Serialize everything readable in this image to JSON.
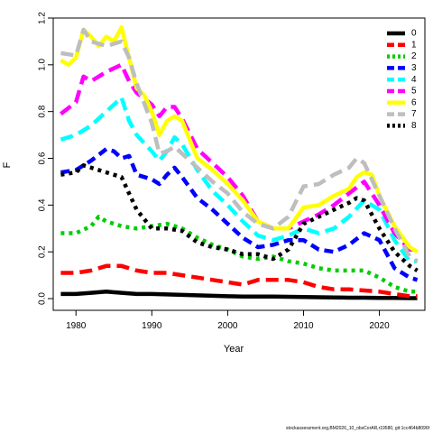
{
  "chart_data": {
    "type": "line",
    "xlabel": "Year",
    "ylabel": "F",
    "xlim": [
      1977,
      2026
    ],
    "ylim": [
      -0.05,
      1.2
    ],
    "x_ticks": [
      1980,
      1990,
      2000,
      2010,
      2020
    ],
    "y_ticks": [
      0.0,
      0.2,
      0.4,
      0.6,
      0.8,
      1.0,
      1.2
    ],
    "y_tick_labels": [
      "0.0",
      "0.2",
      "0.4",
      "0.6",
      "0.8",
      "1.0",
      "1.2"
    ],
    "legend_position": "top-right",
    "grid": false,
    "series": [
      {
        "name": "0",
        "color": "#000000",
        "dash": "solid",
        "x": [
          1978,
          1980,
          1982,
          1984,
          1986,
          1988,
          1990,
          1992,
          1994,
          1996,
          1998,
          2000,
          2002,
          2004,
          2006,
          2008,
          2010,
          2012,
          2014,
          2016,
          2018,
          2020,
          2022,
          2024,
          2025
        ],
        "y": [
          0.02,
          0.02,
          0.025,
          0.03,
          0.025,
          0.02,
          0.02,
          0.018,
          0.016,
          0.014,
          0.012,
          0.01,
          0.009,
          0.009,
          0.009,
          0.008,
          0.007,
          0.006,
          0.005,
          0.004,
          0.004,
          0.003,
          0.003,
          0.002,
          0.002
        ]
      },
      {
        "name": "1",
        "color": "#ff0000",
        "dash": "long",
        "x": [
          1978,
          1980,
          1982,
          1984,
          1986,
          1988,
          1990,
          1992,
          1994,
          1996,
          1998,
          2000,
          2002,
          2004,
          2006,
          2008,
          2010,
          2012,
          2014,
          2016,
          2018,
          2020,
          2022,
          2024,
          2025
        ],
        "y": [
          0.11,
          0.11,
          0.12,
          0.14,
          0.14,
          0.12,
          0.11,
          0.11,
          0.1,
          0.09,
          0.08,
          0.07,
          0.06,
          0.08,
          0.08,
          0.08,
          0.07,
          0.05,
          0.04,
          0.04,
          0.035,
          0.03,
          0.02,
          0.01,
          0.01
        ]
      },
      {
        "name": "2",
        "color": "#00cd00",
        "dash": "dot",
        "x": [
          1978,
          1980,
          1982,
          1983,
          1984,
          1986,
          1988,
          1990,
          1992,
          1994,
          1996,
          1998,
          2000,
          2002,
          2004,
          2006,
          2008,
          2010,
          2012,
          2014,
          2016,
          2018,
          2020,
          2022,
          2024,
          2025
        ],
        "y": [
          0.28,
          0.28,
          0.31,
          0.35,
          0.33,
          0.31,
          0.3,
          0.31,
          0.32,
          0.3,
          0.26,
          0.23,
          0.21,
          0.18,
          0.17,
          0.18,
          0.16,
          0.15,
          0.13,
          0.12,
          0.12,
          0.12,
          0.09,
          0.05,
          0.03,
          0.03
        ]
      },
      {
        "name": "3",
        "color": "#0000ff",
        "dash": "medium",
        "x": [
          1978,
          1980,
          1982,
          1984,
          1985,
          1986,
          1987,
          1988,
          1990,
          1991,
          1992,
          1993,
          1994,
          1996,
          1998,
          2000,
          2002,
          2004,
          2006,
          2008,
          2010,
          2012,
          2014,
          2016,
          2018,
          2020,
          2022,
          2024,
          2025
        ],
        "y": [
          0.54,
          0.55,
          0.59,
          0.64,
          0.63,
          0.6,
          0.61,
          0.53,
          0.51,
          0.49,
          0.53,
          0.56,
          0.52,
          0.43,
          0.38,
          0.32,
          0.26,
          0.22,
          0.23,
          0.25,
          0.25,
          0.21,
          0.2,
          0.23,
          0.28,
          0.25,
          0.13,
          0.09,
          0.08
        ]
      },
      {
        "name": "4",
        "color": "#00ffff",
        "dash": "long",
        "x": [
          1978,
          1980,
          1982,
          1984,
          1986,
          1987,
          1988,
          1990,
          1991,
          1992,
          1993,
          1994,
          1996,
          1998,
          2000,
          2002,
          2004,
          2006,
          2008,
          2010,
          2012,
          2014,
          2016,
          2018,
          2020,
          2022,
          2024,
          2025
        ],
        "y": [
          0.68,
          0.7,
          0.74,
          0.8,
          0.86,
          0.76,
          0.7,
          0.63,
          0.59,
          0.63,
          0.69,
          0.66,
          0.55,
          0.46,
          0.4,
          0.33,
          0.27,
          0.25,
          0.27,
          0.3,
          0.28,
          0.3,
          0.35,
          0.42,
          0.38,
          0.25,
          0.16,
          0.16
        ]
      },
      {
        "name": "5",
        "color": "#ff00ff",
        "dash": "long",
        "x": [
          1978,
          1980,
          1981,
          1982,
          1984,
          1986,
          1987,
          1988,
          1990,
          1991,
          1992,
          1993,
          1994,
          1996,
          1998,
          2000,
          2002,
          2004,
          2006,
          2008,
          2010,
          2012,
          2014,
          2016,
          2018,
          2020,
          2022,
          2024,
          2025
        ],
        "y": [
          0.79,
          0.84,
          0.95,
          0.93,
          0.97,
          1.0,
          0.93,
          0.88,
          0.83,
          0.78,
          0.82,
          0.82,
          0.77,
          0.64,
          0.58,
          0.52,
          0.44,
          0.33,
          0.3,
          0.3,
          0.33,
          0.36,
          0.4,
          0.45,
          0.5,
          0.4,
          0.28,
          0.21,
          0.21
        ]
      },
      {
        "name": "6",
        "color": "#ffff00",
        "dash": "solid",
        "x": [
          1978,
          1979,
          1980,
          1981,
          1982,
          1983,
          1984,
          1985,
          1986,
          1987,
          1988,
          1989,
          1990,
          1991,
          1992,
          1993,
          1994,
          1995,
          1996,
          1998,
          2000,
          2002,
          2004,
          2006,
          2008,
          2010,
          2012,
          2014,
          2016,
          2017,
          2018,
          2019,
          2020,
          2022,
          2024,
          2025
        ],
        "y": [
          1.02,
          1.0,
          1.03,
          1.15,
          1.12,
          1.08,
          1.12,
          1.1,
          1.16,
          1.03,
          0.9,
          0.87,
          0.8,
          0.7,
          0.76,
          0.78,
          0.76,
          0.68,
          0.6,
          0.55,
          0.49,
          0.42,
          0.33,
          0.3,
          0.3,
          0.39,
          0.4,
          0.44,
          0.47,
          0.52,
          0.54,
          0.53,
          0.44,
          0.31,
          0.22,
          0.2
        ]
      },
      {
        "name": "7",
        "color": "#bebebe",
        "dash": "long",
        "x": [
          1978,
          1980,
          1981,
          1982,
          1984,
          1986,
          1987,
          1988,
          1990,
          1991,
          1992,
          1993,
          1994,
          1996,
          1998,
          2000,
          2002,
          2004,
          2006,
          2008,
          2010,
          2012,
          2014,
          2016,
          2017,
          2018,
          2020,
          2022,
          2024,
          2025
        ],
        "y": [
          1.05,
          1.04,
          1.15,
          1.1,
          1.08,
          1.1,
          1.03,
          0.92,
          0.75,
          0.62,
          0.63,
          0.65,
          0.62,
          0.56,
          0.5,
          0.45,
          0.37,
          0.32,
          0.3,
          0.35,
          0.48,
          0.49,
          0.53,
          0.56,
          0.6,
          0.58,
          0.44,
          0.3,
          0.18,
          0.16
        ]
      },
      {
        "name": "8",
        "color": "#000000",
        "dash": "dot",
        "x": [
          1978,
          1980,
          1981,
          1982,
          1984,
          1986,
          1987,
          1988,
          1990,
          1992,
          1994,
          1996,
          1998,
          2000,
          2002,
          2004,
          2006,
          2008,
          2010,
          2012,
          2014,
          2016,
          2017,
          2018,
          2020,
          2022,
          2024,
          2025
        ],
        "y": [
          0.53,
          0.54,
          0.57,
          0.56,
          0.54,
          0.52,
          0.45,
          0.38,
          0.3,
          0.3,
          0.29,
          0.24,
          0.22,
          0.21,
          0.19,
          0.19,
          0.17,
          0.21,
          0.32,
          0.35,
          0.38,
          0.41,
          0.43,
          0.42,
          0.3,
          0.2,
          0.14,
          0.12
        ]
      }
    ]
  },
  "footer": "stockassessment.org,BM2026_10_obsCorAR,r19580, git:1cc464b8096f"
}
